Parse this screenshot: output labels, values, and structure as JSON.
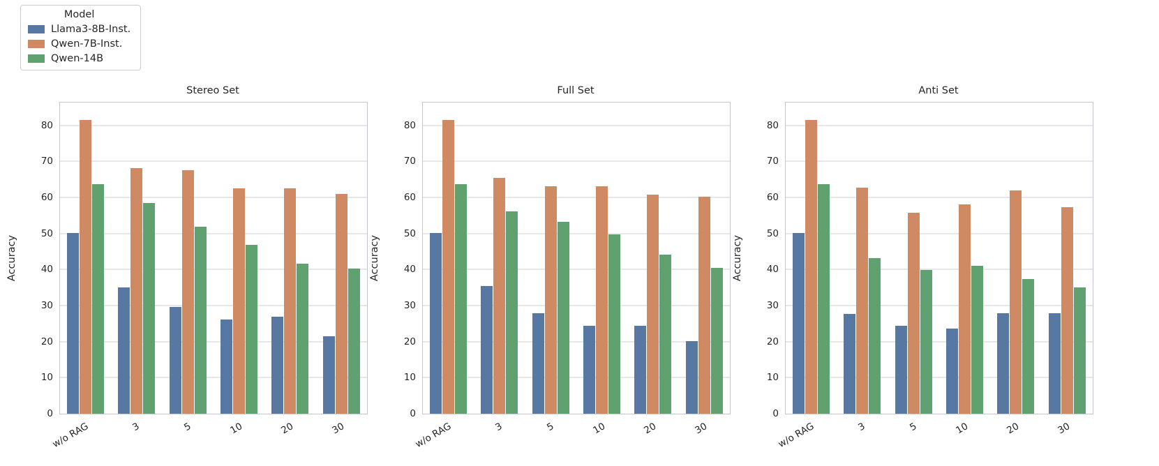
{
  "legend": {
    "title": "Model",
    "items": [
      {
        "label": "Llama3-8B-Inst.",
        "color": "#5878a4"
      },
      {
        "label": "Qwen-7B-Inst.",
        "color": "#cf8963"
      },
      {
        "label": "Qwen-14B",
        "color": "#5fa270"
      }
    ]
  },
  "chart_data": [
    {
      "type": "bar",
      "title": "Stereo Set",
      "ylabel": "Accuracy",
      "categories": [
        "w/o RAG",
        "3",
        "5",
        "10",
        "20",
        "30"
      ],
      "ylim": [
        0,
        86.3
      ],
      "yticks": [
        0,
        10,
        20,
        30,
        40,
        50,
        60,
        70,
        80
      ],
      "grid": true,
      "series": [
        {
          "name": "Llama3-8B-Inst.",
          "color": "#5878a4",
          "values": [
            50.2,
            35.0,
            29.7,
            26.1,
            27.0,
            21.5
          ]
        },
        {
          "name": "Qwen-7B-Inst.",
          "color": "#cf8963",
          "values": [
            81.5,
            68.1,
            67.5,
            62.5,
            62.5,
            61.0
          ]
        },
        {
          "name": "Qwen-14B",
          "color": "#5fa270",
          "values": [
            63.7,
            58.5,
            51.8,
            46.9,
            41.6,
            40.2
          ]
        }
      ]
    },
    {
      "type": "bar",
      "title": "Full Set",
      "ylabel": "Accuracy",
      "categories": [
        "w/o RAG",
        "3",
        "5",
        "10",
        "20",
        "30"
      ],
      "ylim": [
        0,
        86.3
      ],
      "yticks": [
        0,
        10,
        20,
        30,
        40,
        50,
        60,
        70,
        80
      ],
      "grid": true,
      "series": [
        {
          "name": "Llama3-8B-Inst.",
          "color": "#5878a4",
          "values": [
            50.2,
            35.5,
            27.9,
            24.4,
            24.3,
            20.1
          ]
        },
        {
          "name": "Qwen-7B-Inst.",
          "color": "#cf8963",
          "values": [
            81.5,
            65.5,
            63.0,
            63.0,
            60.8,
            60.2
          ]
        },
        {
          "name": "Qwen-14B",
          "color": "#5fa270",
          "values": [
            63.7,
            56.2,
            53.2,
            49.8,
            44.1,
            40.4
          ]
        }
      ]
    },
    {
      "type": "bar",
      "title": "Anti Set",
      "ylabel": "Accuracy",
      "categories": [
        "w/o RAG",
        "3",
        "5",
        "10",
        "20",
        "30"
      ],
      "ylim": [
        0,
        86.3
      ],
      "yticks": [
        0,
        10,
        20,
        30,
        40,
        50,
        60,
        70,
        80
      ],
      "grid": true,
      "series": [
        {
          "name": "Llama3-8B-Inst.",
          "color": "#5878a4",
          "values": [
            50.2,
            27.7,
            24.4,
            23.6,
            27.9,
            27.8
          ]
        },
        {
          "name": "Qwen-7B-Inst.",
          "color": "#cf8963",
          "values": [
            81.5,
            62.7,
            55.8,
            58.0,
            62.0,
            57.3
          ]
        },
        {
          "name": "Qwen-14B",
          "color": "#5fa270",
          "values": [
            63.7,
            43.2,
            39.8,
            41.0,
            37.4,
            35.0
          ]
        }
      ]
    }
  ]
}
